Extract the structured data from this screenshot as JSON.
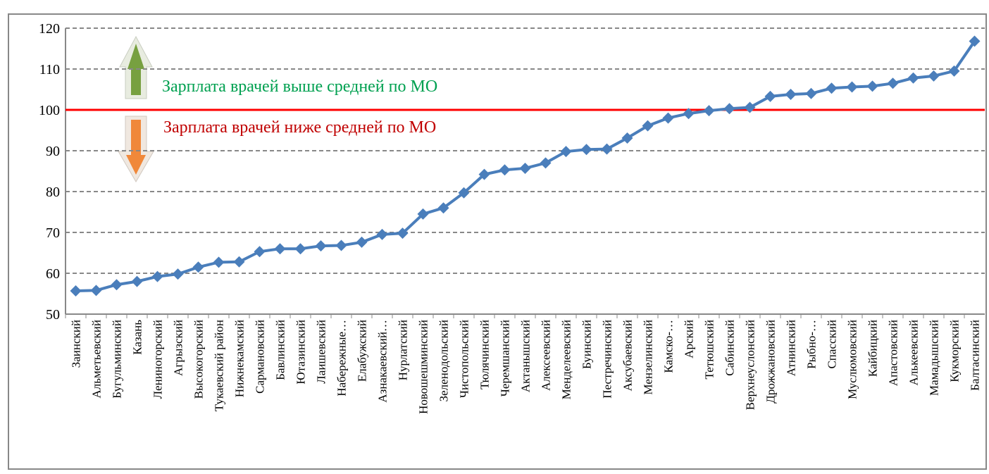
{
  "chart_data": {
    "type": "line",
    "categories": [
      "Заинский",
      "Альметьевский",
      "Бугульминский",
      "Казань",
      "Лениногорский",
      "Агрызский",
      "Высокогорский",
      "Тукаевский район",
      "Нижнекамский",
      "Сармановский",
      "Бавлинский",
      "Ютазинский",
      "Лаишевский",
      "Набережные…",
      "Елабужский",
      "Азнакаевский…",
      "Нурлатский",
      "Новошешминский",
      "Зеленодольский",
      "Чистопольский",
      "Тюлячинский",
      "Черемшанский",
      "Актанышский",
      "Алексеевский",
      "Менделеевский",
      "Буинский",
      "Пестречинский",
      "Аксубаевский",
      "Мензелинский",
      "Камско-…",
      "Арский",
      "Тетюшский",
      "Сабинский",
      "Верхнеуслонский",
      "Дрожжановский",
      "Атнинский",
      "Рыбно-…",
      "Спасский",
      "Муслюмовский",
      "Кайбицкий",
      "Апастовский",
      "Алькеевский",
      "Мамадышский",
      "Кукморский",
      "Балтасинский"
    ],
    "series": [
      {
        "color": "#4a7ebb",
        "values": [
          55.7,
          55.8,
          57.2,
          58,
          59.2,
          59.8,
          61.5,
          62.7,
          62.8,
          65.3,
          66,
          66,
          66.7,
          66.8,
          67.6,
          69.5,
          69.8,
          74.5,
          76,
          79.7,
          84.2,
          85.3,
          85.7,
          87,
          89.8,
          90.3,
          90.4,
          93.1,
          96.1,
          98,
          99.1,
          99.8,
          100.3,
          100.6,
          103.3,
          103.8,
          104,
          105.3,
          105.6,
          105.8,
          106.5,
          107.8,
          108.3,
          109.5,
          116.8
        ]
      }
    ],
    "ylim": [
      50,
      120
    ],
    "yticks": [
      50,
      60,
      70,
      80,
      90,
      100,
      110,
      120
    ],
    "grid": true,
    "reference_line": {
      "value": 100,
      "color": "#ff0000"
    },
    "annotations": [
      {
        "text": "Зарплата врачей выше средней по МО",
        "color": "#00a050"
      },
      {
        "text": "Зарплата врачей ниже средней по МО",
        "color": "#c00000"
      }
    ]
  }
}
